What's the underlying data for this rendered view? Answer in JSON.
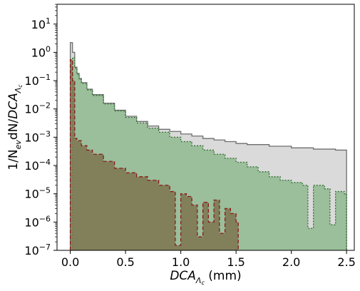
{
  "chart_data": {
    "type": "area",
    "title": "",
    "xlabel_main": "DCA",
    "xlabel_sub": "Λ",
    "xlabel_subsub": "c",
    "xlabel_unit": " (mm)",
    "ylabel_prefix": "1/N",
    "ylabel_prefix_sub": "ev",
    "ylabel_mid": "dN/",
    "ylabel_main": "DCA",
    "ylabel_sub": "Λ",
    "ylabel_subsub": "c",
    "xlim": [
      -0.12,
      2.57
    ],
    "ylim_log10": [
      -7,
      1.7
    ],
    "y_scale": "log",
    "x_ticks": [
      "0.0",
      "0.5",
      "1.0",
      "1.5",
      "2.0",
      "2.5"
    ],
    "x_tick_values": [
      0.0,
      0.5,
      1.0,
      1.5,
      2.0,
      2.5
    ],
    "y_tick_exponents": [
      -7,
      -6,
      -5,
      -4,
      -3,
      -2,
      -1,
      0,
      1
    ],
    "y_tick_base": "10",
    "grid": false,
    "legend": "none",
    "series": [
      {
        "style_key": "gray",
        "fill": "#d3d3d3",
        "line": "#6e6e6e",
        "dash": "",
        "points": [
          [
            0.0,
            2.2
          ],
          [
            0.02,
            1.0
          ],
          [
            0.04,
            0.3
          ],
          [
            0.06,
            0.18
          ],
          [
            0.08,
            0.12
          ],
          [
            0.1,
            0.085
          ],
          [
            0.15,
            0.05
          ],
          [
            0.2,
            0.032
          ],
          [
            0.3,
            0.016
          ],
          [
            0.4,
            0.009
          ],
          [
            0.5,
            0.0055
          ],
          [
            0.6,
            0.0036
          ],
          [
            0.7,
            0.0025
          ],
          [
            0.8,
            0.0019
          ],
          [
            0.9,
            0.0016
          ],
          [
            1.0,
            0.0013
          ],
          [
            1.1,
            0.0011
          ],
          [
            1.2,
            0.0009
          ],
          [
            1.3,
            0.0008
          ],
          [
            1.4,
            0.0007
          ],
          [
            1.5,
            0.0006
          ],
          [
            1.6,
            0.00055
          ],
          [
            1.8,
            0.00048
          ],
          [
            2.0,
            0.00042
          ],
          [
            2.2,
            0.00038
          ],
          [
            2.4,
            0.00035
          ],
          [
            2.48,
            0.00035
          ]
        ]
      },
      {
        "style_key": "green",
        "fill": "#8fb98f",
        "line": "#2f6f2f",
        "dash": "2,2",
        "points": [
          [
            0.02,
            0.65
          ],
          [
            0.04,
            0.28
          ],
          [
            0.06,
            0.17
          ],
          [
            0.08,
            0.11
          ],
          [
            0.1,
            0.08
          ],
          [
            0.15,
            0.047
          ],
          [
            0.2,
            0.03
          ],
          [
            0.3,
            0.015
          ],
          [
            0.4,
            0.0085
          ],
          [
            0.5,
            0.005
          ],
          [
            0.6,
            0.0032
          ],
          [
            0.7,
            0.0021
          ],
          [
            0.8,
            0.0015
          ],
          [
            0.9,
            0.001
          ],
          [
            1.0,
            0.0007
          ],
          [
            1.1,
            0.0005
          ],
          [
            1.2,
            0.00035
          ],
          [
            1.3,
            0.00025
          ],
          [
            1.4,
            0.00018
          ],
          [
            1.5,
            0.00013
          ],
          [
            1.6,
            9e-05
          ],
          [
            1.7,
            6e-05
          ],
          [
            1.8,
            4e-05
          ],
          [
            1.9,
            3e-05
          ],
          [
            2.0,
            2.5e-05
          ],
          [
            2.1,
            2e-05
          ],
          [
            2.15,
            6e-07
          ],
          [
            2.2,
            2e-05
          ],
          [
            2.3,
            1.5e-05
          ],
          [
            2.35,
            8e-07
          ],
          [
            2.4,
            1.2e-05
          ],
          [
            2.48,
            1e-05
          ]
        ]
      },
      {
        "style_key": "red",
        "fill": "#7d7550",
        "line": "#8b1a1a",
        "dash": "5,3",
        "points": [
          [
            0.0,
            0.55
          ],
          [
            0.02,
            0.1
          ],
          [
            0.04,
            0.0009
          ],
          [
            0.06,
            0.00075
          ],
          [
            0.1,
            0.0005
          ],
          [
            0.15,
            0.00035
          ],
          [
            0.2,
            0.00025
          ],
          [
            0.3,
            0.00014
          ],
          [
            0.4,
            8e-05
          ],
          [
            0.5,
            5.5e-05
          ],
          [
            0.6,
            4e-05
          ],
          [
            0.7,
            3e-05
          ],
          [
            0.8,
            2e-05
          ],
          [
            0.9,
            1.2e-05
          ],
          [
            0.95,
            1.5e-07
          ],
          [
            1.0,
            1e-05
          ],
          [
            1.05,
            8e-06
          ],
          [
            1.1,
            4e-06
          ],
          [
            1.15,
            3e-07
          ],
          [
            1.2,
            5e-06
          ],
          [
            1.25,
            1e-06
          ],
          [
            1.3,
            6e-06
          ],
          [
            1.35,
            4e-07
          ],
          [
            1.4,
            3e-06
          ],
          [
            1.45,
            2e-06
          ],
          [
            1.5,
            1e-06
          ]
        ]
      }
    ]
  }
}
